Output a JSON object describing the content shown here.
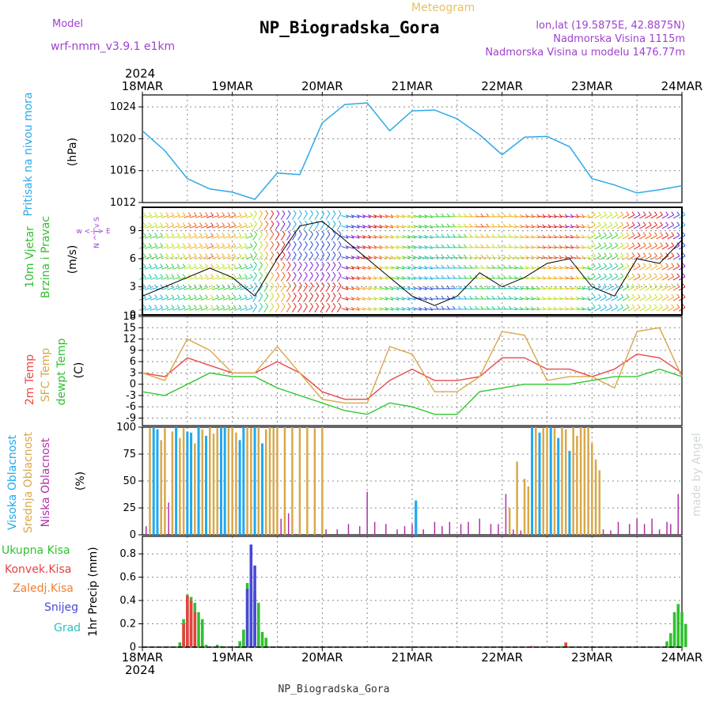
{
  "header": {
    "model_label": "Model",
    "model_name": "wrf-nmm_v3.9.1 e1km",
    "meteogram_label": "Meteogram",
    "station_title": "NP_Biogradska_Gora",
    "lonlat": "lon,lat (19.5875E, 42.8875N)",
    "elevation": "Nadmorska Visina 1115m",
    "model_elevation": "Nadmorska Visina u modelu 1476.77m",
    "year_top": "2024",
    "year_bottom": "2024",
    "footer_station": "NP_Biogradska_Gora",
    "watermark": "made by Angel"
  },
  "colors": {
    "pressure": "#2ea8e8",
    "temp2m": "#e84848",
    "sfc_temp": "#d8a848",
    "dewpoint": "#30c830",
    "cloud_high": "#20a8f0",
    "cloud_mid": "#d8a848",
    "cloud_low": "#b030a8",
    "rain_total": "#30c030",
    "rain_conv": "#e84040",
    "rain_frz": "#f08030",
    "snow": "#4848d8",
    "graupel": "#30c0c0",
    "wind_line": "#000000"
  },
  "chart_data": [
    {
      "type": "line",
      "panel": "pressure",
      "ylabel_1": "Pritisak na nivou mora",
      "ylabel_2": "(hPa)",
      "ylim": [
        1012,
        1025.5
      ],
      "yticks": [
        "1012",
        "1016",
        "1020",
        "1024"
      ],
      "x_tick_labels": [
        "18MAR",
        "19MAR",
        "20MAR",
        "21MAR",
        "22MAR",
        "23MAR",
        "24MAR"
      ],
      "x_hours": [
        0,
        6,
        12,
        18,
        24,
        30,
        36,
        42,
        48,
        54,
        60,
        66,
        72,
        78,
        84,
        90,
        96,
        102,
        108,
        114,
        120,
        126,
        132,
        138,
        144
      ],
      "values": [
        1021.0,
        1018.5,
        1015.0,
        1013.7,
        1013.3,
        1012.4,
        1015.7,
        1015.5,
        1022.0,
        1024.3,
        1024.5,
        1021.0,
        1023.5,
        1023.6,
        1022.5,
        1020.5,
        1018.0,
        1020.2,
        1020.3,
        1019.0,
        1015.0,
        1014.2,
        1013.2,
        1013.6,
        1014.1
      ]
    },
    {
      "type": "line",
      "panel": "wind",
      "ylabel_1": "10m Vjetar",
      "ylabel_2": "Brzina i Pravac",
      "ylabel_3": "(m/s)",
      "compass": "w <-|-> E",
      "compass_v": "N ^ | v S",
      "ylim": [
        0,
        11.5
      ],
      "yticks": [
        "0",
        "3",
        "6",
        "9"
      ],
      "x_hours": [
        0,
        6,
        12,
        18,
        24,
        30,
        36,
        42,
        48,
        54,
        60,
        66,
        72,
        78,
        84,
        90,
        96,
        102,
        108,
        114,
        120,
        126,
        132,
        138,
        144
      ],
      "speed": [
        2.0,
        3.0,
        4.0,
        5.0,
        4.0,
        2.0,
        6.0,
        9.5,
        10.0,
        8.0,
        6.0,
        4.0,
        2.0,
        1.0,
        2.0,
        4.5,
        3.0,
        4.0,
        5.5,
        6.0,
        3.0,
        2.0,
        6.0,
        5.5,
        8.0
      ]
    },
    {
      "type": "line",
      "panel": "temperature",
      "ylabel_1": "2m Temp",
      "ylabel_2": "SFC Temp",
      "ylabel_3": "dewpt Temp",
      "ylabel_4": "(C)",
      "ylim": [
        -11,
        18
      ],
      "yticks": [
        "-9",
        "-6",
        "-3",
        "0",
        "3",
        "6",
        "9",
        "12",
        "15",
        "18"
      ],
      "x_hours": [
        0,
        6,
        12,
        18,
        24,
        30,
        36,
        42,
        48,
        54,
        60,
        66,
        72,
        78,
        84,
        90,
        96,
        102,
        108,
        114,
        120,
        126,
        132,
        138,
        144
      ],
      "series": [
        {
          "name": "2m Temp",
          "values": [
            3,
            2,
            7,
            5,
            3,
            3,
            6,
            3,
            -2,
            -4,
            -4,
            1,
            4,
            1,
            1,
            2,
            7,
            7,
            4,
            4,
            2,
            4,
            8,
            7,
            3
          ]
        },
        {
          "name": "SFC Temp",
          "values": [
            3,
            1,
            12,
            9,
            3,
            3,
            10,
            3,
            -4,
            -5,
            -5,
            10,
            8,
            -2,
            -2,
            2,
            14,
            13,
            1,
            2,
            2,
            -1,
            14,
            15,
            2
          ]
        },
        {
          "name": "dewpt Temp",
          "values": [
            -2,
            -3,
            0,
            3,
            2,
            2,
            -1,
            -3,
            -5,
            -7,
            -8,
            -5,
            -6,
            -8,
            -8,
            -2,
            -1,
            0,
            0,
            0,
            1,
            2,
            2,
            4,
            2
          ]
        }
      ]
    },
    {
      "type": "bar",
      "panel": "clouds",
      "ylabel_1": "Visoka Oblacnost",
      "ylabel_2": "Srednja Oblacnost",
      "ylabel_3": "Niska Oblacnost",
      "ylabel_4": "(%)",
      "ylim": [
        0,
        100
      ],
      "yticks": [
        "0",
        "25",
        "50",
        "75",
        "100"
      ],
      "series": [
        {
          "name": "Visoka Oblacnost",
          "bars": [
            [
              3,
              100
            ],
            [
              4,
              98
            ],
            [
              9,
              100
            ],
            [
              12,
              96
            ],
            [
              13,
              95
            ],
            [
              15,
              100
            ],
            [
              17,
              92
            ],
            [
              21,
              100
            ],
            [
              22,
              100
            ],
            [
              26,
              88
            ],
            [
              27,
              100
            ],
            [
              30,
              100
            ],
            [
              32,
              85
            ],
            [
              73,
              32
            ],
            [
              73,
              30
            ],
            [
              104,
              100
            ],
            [
              106,
              95
            ],
            [
              109,
              100
            ],
            [
              111,
              90
            ],
            [
              114,
              78
            ]
          ]
        },
        {
          "name": "Srednja Oblacnost",
          "bars": [
            [
              2,
              99
            ],
            [
              5,
              88
            ],
            [
              6,
              99
            ],
            [
              8,
              96
            ],
            [
              10,
              90
            ],
            [
              11,
              99
            ],
            [
              14,
              85
            ],
            [
              16,
              98
            ],
            [
              18,
              100
            ],
            [
              19,
              94
            ],
            [
              20,
              99
            ],
            [
              23,
              99
            ],
            [
              24,
              100
            ],
            [
              25,
              95
            ],
            [
              28,
              100
            ],
            [
              29,
              99
            ],
            [
              31,
              100
            ],
            [
              33,
              98
            ],
            [
              34,
              100
            ],
            [
              35,
              99
            ],
            [
              36,
              100
            ],
            [
              38,
              100
            ],
            [
              40,
              100
            ],
            [
              42,
              100
            ],
            [
              44,
              100
            ],
            [
              46,
              99
            ],
            [
              48,
              100
            ],
            [
              98,
              25
            ],
            [
              100,
              68
            ],
            [
              102,
              52
            ],
            [
              103,
              45
            ],
            [
              105,
              100
            ],
            [
              107,
              99
            ],
            [
              108,
              100
            ],
            [
              110,
              99
            ],
            [
              112,
              100
            ],
            [
              113,
              98
            ],
            [
              115,
              100
            ],
            [
              116,
              92
            ],
            [
              117,
              100
            ],
            [
              118,
              99
            ],
            [
              119,
              100
            ],
            [
              120,
              85
            ],
            [
              121,
              70
            ],
            [
              122,
              60
            ]
          ]
        },
        {
          "name": "Niska Oblacnost",
          "bars": [
            [
              1,
              8
            ],
            [
              7,
              30
            ],
            [
              37,
              15
            ],
            [
              39,
              20
            ],
            [
              49,
              5
            ],
            [
              52,
              5
            ],
            [
              55,
              10
            ],
            [
              58,
              8
            ],
            [
              60,
              40
            ],
            [
              62,
              12
            ],
            [
              65,
              10
            ],
            [
              68,
              5
            ],
            [
              70,
              8
            ],
            [
              72,
              10
            ],
            [
              75,
              5
            ],
            [
              78,
              12
            ],
            [
              80,
              8
            ],
            [
              82,
              12
            ],
            [
              85,
              10
            ],
            [
              87,
              12
            ],
            [
              90,
              15
            ],
            [
              93,
              10
            ],
            [
              95,
              10
            ],
            [
              97,
              38
            ],
            [
              99,
              5
            ],
            [
              101,
              4
            ],
            [
              123,
              5
            ],
            [
              125,
              4
            ],
            [
              127,
              12
            ],
            [
              130,
              10
            ],
            [
              132,
              15
            ],
            [
              134,
              10
            ],
            [
              136,
              15
            ],
            [
              138,
              5
            ],
            [
              140,
              12
            ],
            [
              141,
              10
            ],
            [
              143,
              38
            ]
          ]
        }
      ]
    },
    {
      "type": "bar",
      "panel": "precipitation",
      "legend": [
        "Ukupna Kisa",
        "Konvek.Kisa",
        "Zaledj.Kisa",
        "Snijeg",
        "Grad"
      ],
      "ylabel": "1hr Precip (mm)",
      "ylim": [
        0,
        0.95
      ],
      "yticks": [
        "0",
        "0.2",
        "0.4",
        "0.6",
        "0.8"
      ],
      "series": [
        {
          "name": "Ukupna Kisa",
          "bars": [
            [
              10,
              0.04
            ],
            [
              11,
              0.24
            ],
            [
              12,
              0.45
            ],
            [
              13,
              0.43
            ],
            [
              14,
              0.38
            ],
            [
              15,
              0.3
            ],
            [
              16,
              0.24
            ],
            [
              17,
              0.02
            ],
            [
              20,
              0.02
            ],
            [
              21,
              0.01
            ],
            [
              26,
              0.05
            ],
            [
              27,
              0.15
            ],
            [
              28,
              0.55
            ],
            [
              29,
              0.54
            ],
            [
              30,
              0.48
            ],
            [
              31,
              0.38
            ],
            [
              32,
              0.13
            ],
            [
              33,
              0.08
            ],
            [
              112,
              0.01
            ],
            [
              140,
              0.05
            ],
            [
              141,
              0.12
            ],
            [
              142,
              0.3
            ],
            [
              143,
              0.37
            ],
            [
              144,
              0.3
            ],
            [
              145,
              0.2
            ]
          ]
        },
        {
          "name": "Konvek.Kisa",
          "bars": [
            [
              11,
              0.2
            ],
            [
              12,
              0.44
            ],
            [
              13,
              0.4
            ],
            [
              14,
              0.3
            ],
            [
              104,
              0.01
            ],
            [
              113,
              0.04
            ]
          ]
        },
        {
          "name": "Snijeg",
          "bars": [
            [
              28,
              0.5
            ],
            [
              29,
              0.88
            ],
            [
              30,
              0.7
            ]
          ]
        }
      ]
    }
  ]
}
